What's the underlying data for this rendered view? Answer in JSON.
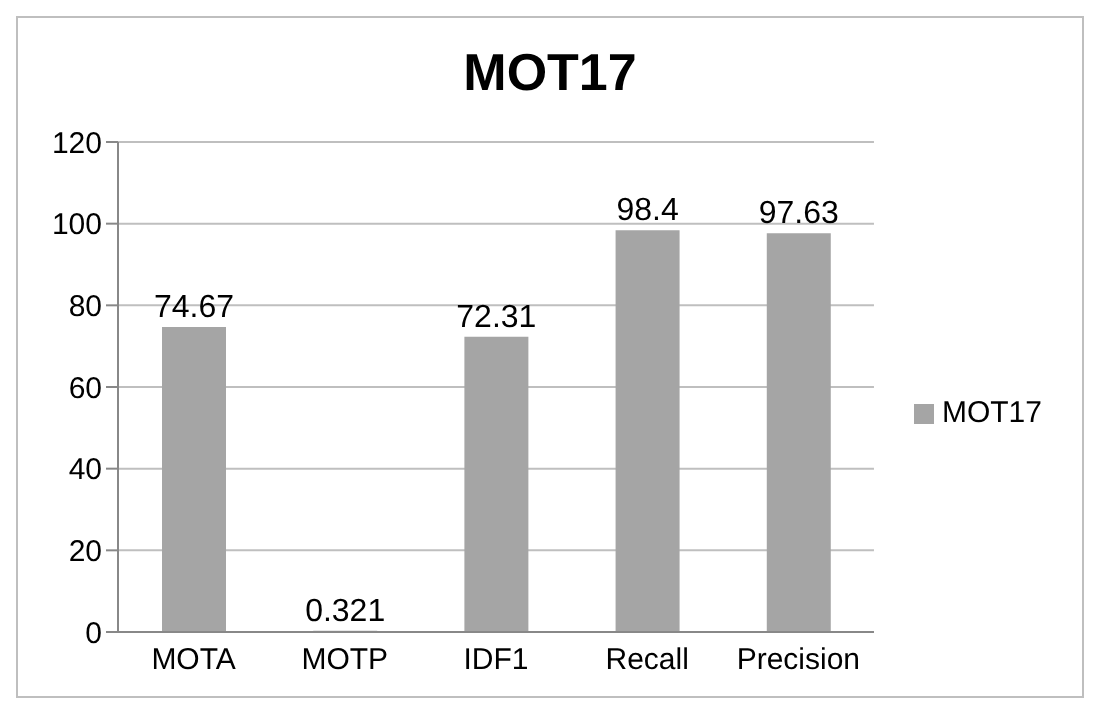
{
  "chart_data": {
    "type": "bar",
    "title": "MOT17",
    "categories": [
      "MOTA",
      "MOTP",
      "IDF1",
      "Recall",
      "Precision"
    ],
    "series": [
      {
        "name": "MOT17",
        "color": "#a5a5a5",
        "values": [
          74.67,
          0.321,
          72.31,
          98.4,
          97.63
        ]
      }
    ],
    "ylim": [
      0,
      120
    ],
    "yticks": [
      0,
      20,
      40,
      60,
      80,
      100,
      120
    ],
    "grid": "y",
    "legend": "right",
    "data_labels": true
  }
}
